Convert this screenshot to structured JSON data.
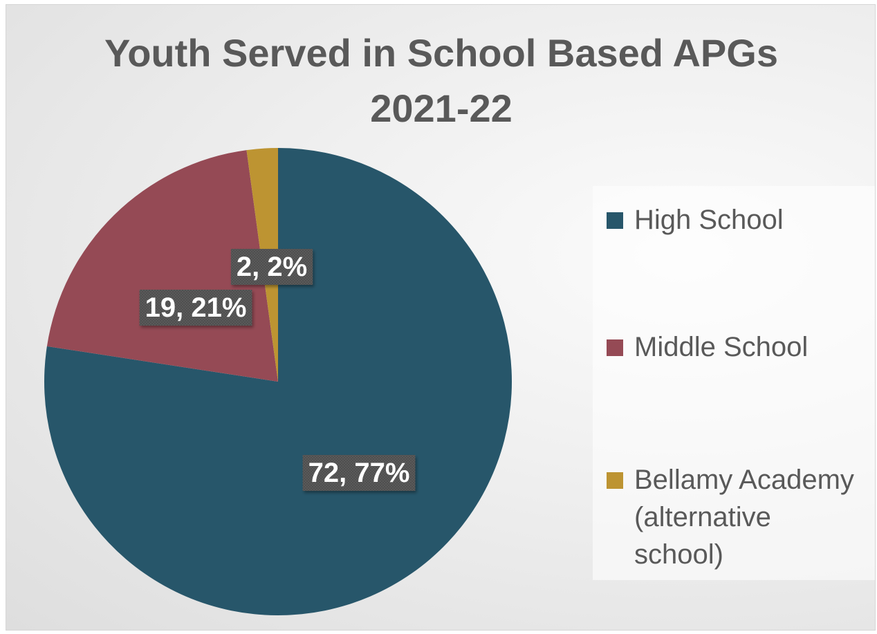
{
  "chart_data": {
    "type": "pie",
    "title": [
      "Youth Served in School Based APGs",
      "2021-22"
    ],
    "categories": [
      "High School",
      "Middle School",
      "Bellamy Academy (alternative school)"
    ],
    "values": [
      72,
      19,
      2
    ],
    "percents": [
      77,
      21,
      2
    ],
    "data_labels": [
      "72, 77%",
      "19, 21%",
      "2, 2%"
    ],
    "colors": [
      "#27566a",
      "#954a55",
      "#bd9432"
    ],
    "legend_position": "right",
    "start_angle": "12 o'clock",
    "direction": "clockwise"
  },
  "legend": {
    "items": [
      {
        "label_lines": [
          "High School"
        ]
      },
      {
        "label_lines": [
          "Middle School"
        ]
      },
      {
        "label_lines": [
          "Bellamy Academy",
          "(alternative",
          "school)"
        ]
      }
    ]
  }
}
